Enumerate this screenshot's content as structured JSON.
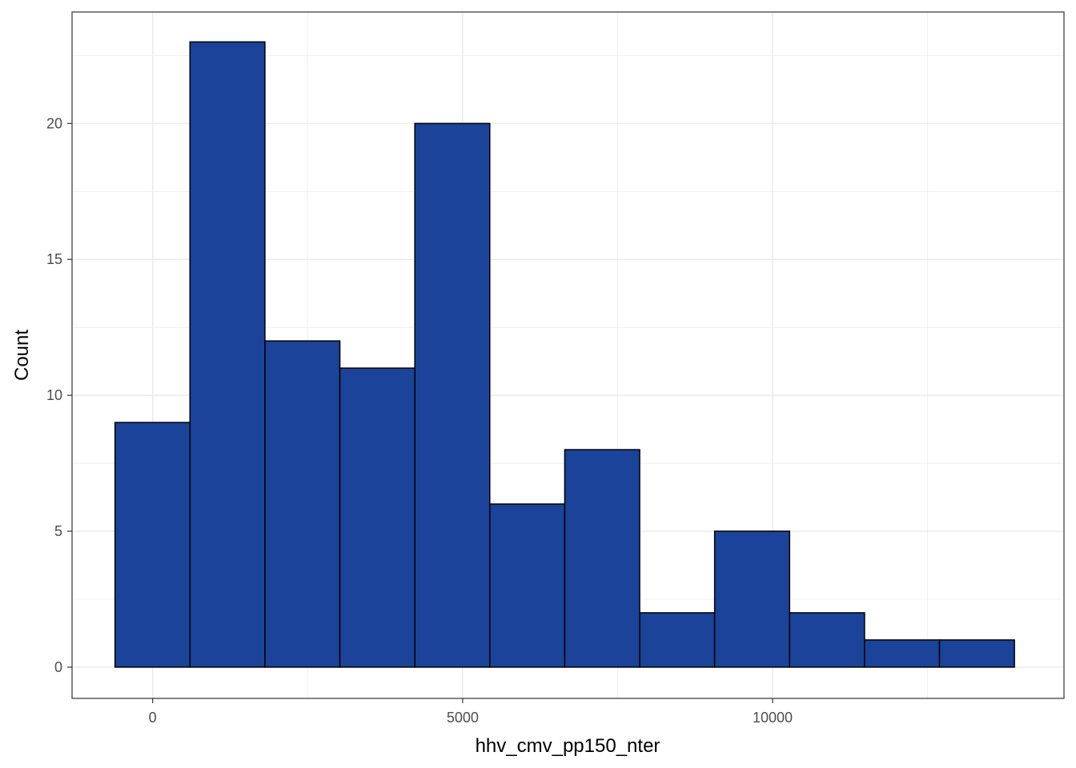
{
  "chart_data": {
    "type": "bar",
    "subtype": "histogram",
    "title": "",
    "xlabel": "hhv_cmv_pp150_nter",
    "ylabel": "Count",
    "x_ticks": [
      0,
      5000,
      10000
    ],
    "x_tick_labels": [
      "0",
      "5000",
      "10000"
    ],
    "y_ticks": [
      0,
      5,
      10,
      15,
      20
    ],
    "y_tick_labels": [
      "0",
      "5",
      "10",
      "15",
      "20"
    ],
    "xlim": [
      -1300,
      14700
    ],
    "ylim": [
      -1.15,
      24.1
    ],
    "grid": true,
    "bin_width": 1209,
    "bins": [
      {
        "x0": -607,
        "x1": 602,
        "count": 9
      },
      {
        "x0": 602,
        "x1": 1811,
        "count": 23
      },
      {
        "x0": 1811,
        "x1": 3020,
        "count": 12
      },
      {
        "x0": 3020,
        "x1": 4229,
        "count": 11
      },
      {
        "x0": 4229,
        "x1": 5438,
        "count": 20
      },
      {
        "x0": 5438,
        "x1": 6647,
        "count": 6
      },
      {
        "x0": 6647,
        "x1": 7856,
        "count": 8
      },
      {
        "x0": 7856,
        "x1": 9065,
        "count": 2
      },
      {
        "x0": 9065,
        "x1": 10274,
        "count": 5
      },
      {
        "x0": 10274,
        "x1": 11483,
        "count": 2
      },
      {
        "x0": 11483,
        "x1": 12692,
        "count": 1
      },
      {
        "x0": 12692,
        "x1": 13901,
        "count": 1
      }
    ],
    "colors": {
      "fill": "#1a4399",
      "stroke": "#000000",
      "grid": "#ebebeb",
      "panel_border": "#333333"
    }
  }
}
